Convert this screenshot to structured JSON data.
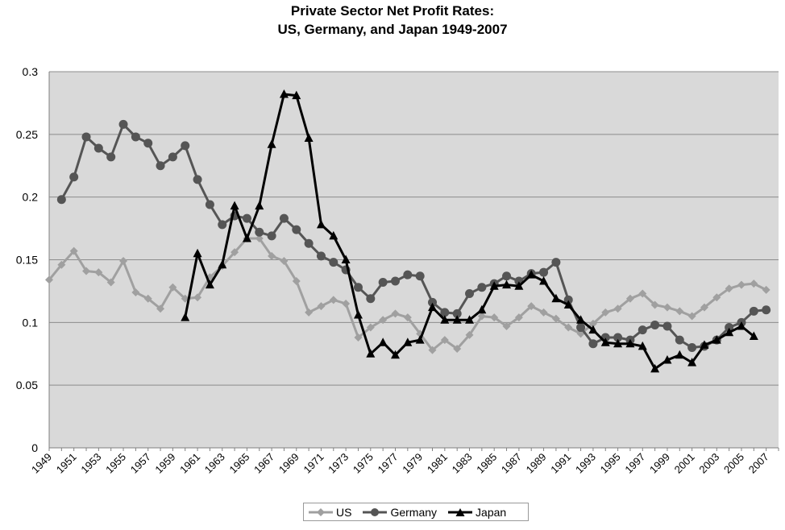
{
  "title": {
    "line1": "Private Sector Net Profit Rates:",
    "line2": "US, Germany, and Japan 1949-2007"
  },
  "colors": {
    "US": "#a0a0a0",
    "Germany": "#555555",
    "Japan": "#000000",
    "plot_bg": "#d9d9d9",
    "grid": "#8c8c8c"
  },
  "chart_data": {
    "type": "line",
    "xlabel": "",
    "ylabel": "",
    "ylim": [
      0,
      0.3
    ],
    "yticks": [
      0,
      0.05,
      0.1,
      0.15,
      0.2,
      0.25,
      0.3
    ],
    "ytick_labels": [
      "0",
      "0.05",
      "0.1",
      "0.15",
      "0.2",
      "0.25",
      "0.3"
    ],
    "x_tick_labels": [
      "1949",
      "1951",
      "1953",
      "1955",
      "1957",
      "1959",
      "1961",
      "1963",
      "1965",
      "1967",
      "1969",
      "1971",
      "1973",
      "1975",
      "1977",
      "1979",
      "1981",
      "1983",
      "1985",
      "1987",
      "1989",
      "1991",
      "1993",
      "1995",
      "1997",
      "1999",
      "2001",
      "2003",
      "2005",
      "2007"
    ],
    "grid": true,
    "legend_position": "bottom",
    "series": [
      {
        "name": "US",
        "marker": "diamond",
        "points": [
          [
            1949,
            0.134
          ],
          [
            1950,
            0.146
          ],
          [
            1951,
            0.157
          ],
          [
            1952,
            0.141
          ],
          [
            1953,
            0.14
          ],
          [
            1954,
            0.132
          ],
          [
            1955,
            0.149
          ],
          [
            1956,
            0.124
          ],
          [
            1957,
            0.119
          ],
          [
            1958,
            0.111
          ],
          [
            1959,
            0.128
          ],
          [
            1960,
            0.119
          ],
          [
            1961,
            0.12
          ],
          [
            1962,
            0.136
          ],
          [
            1963,
            0.145
          ],
          [
            1964,
            0.156
          ],
          [
            1965,
            0.167
          ],
          [
            1966,
            0.167
          ],
          [
            1967,
            0.153
          ],
          [
            1968,
            0.149
          ],
          [
            1969,
            0.133
          ],
          [
            1970,
            0.108
          ],
          [
            1971,
            0.113
          ],
          [
            1972,
            0.118
          ],
          [
            1973,
            0.115
          ],
          [
            1974,
            0.088
          ],
          [
            1975,
            0.096
          ],
          [
            1976,
            0.102
          ],
          [
            1977,
            0.107
          ],
          [
            1978,
            0.104
          ],
          [
            1979,
            0.091
          ],
          [
            1980,
            0.078
          ],
          [
            1981,
            0.086
          ],
          [
            1982,
            0.079
          ],
          [
            1983,
            0.09
          ],
          [
            1984,
            0.105
          ],
          [
            1985,
            0.104
          ],
          [
            1986,
            0.097
          ],
          [
            1987,
            0.104
          ],
          [
            1988,
            0.113
          ],
          [
            1989,
            0.108
          ],
          [
            1990,
            0.103
          ],
          [
            1991,
            0.096
          ],
          [
            1992,
            0.091
          ],
          [
            1993,
            0.099
          ],
          [
            1994,
            0.108
          ],
          [
            1995,
            0.111
          ],
          [
            1996,
            0.119
          ],
          [
            1997,
            0.123
          ],
          [
            1998,
            0.114
          ],
          [
            1999,
            0.112
          ],
          [
            2000,
            0.109
          ],
          [
            2001,
            0.105
          ],
          [
            2002,
            0.112
          ],
          [
            2003,
            0.12
          ],
          [
            2004,
            0.127
          ],
          [
            2005,
            0.13
          ],
          [
            2006,
            0.131
          ],
          [
            2007,
            0.126
          ]
        ]
      },
      {
        "name": "Germany",
        "marker": "circle",
        "points": [
          [
            1950,
            0.198
          ],
          [
            1951,
            0.216
          ],
          [
            1952,
            0.248
          ],
          [
            1953,
            0.239
          ],
          [
            1954,
            0.232
          ],
          [
            1955,
            0.258
          ],
          [
            1956,
            0.248
          ],
          [
            1957,
            0.243
          ],
          [
            1958,
            0.225
          ],
          [
            1959,
            0.232
          ],
          [
            1960,
            0.241
          ],
          [
            1961,
            0.214
          ],
          [
            1962,
            0.194
          ],
          [
            1963,
            0.178
          ],
          [
            1964,
            0.185
          ],
          [
            1965,
            0.183
          ],
          [
            1966,
            0.172
          ],
          [
            1967,
            0.169
          ],
          [
            1968,
            0.183
          ],
          [
            1969,
            0.174
          ],
          [
            1970,
            0.163
          ],
          [
            1971,
            0.153
          ],
          [
            1972,
            0.148
          ],
          [
            1973,
            0.142
          ],
          [
            1974,
            0.128
          ],
          [
            1975,
            0.119
          ],
          [
            1976,
            0.132
          ],
          [
            1977,
            0.133
          ],
          [
            1978,
            0.138
          ],
          [
            1979,
            0.137
          ],
          [
            1980,
            0.116
          ],
          [
            1981,
            0.108
          ],
          [
            1982,
            0.107
          ],
          [
            1983,
            0.123
          ],
          [
            1984,
            0.128
          ],
          [
            1985,
            0.131
          ],
          [
            1986,
            0.137
          ],
          [
            1987,
            0.133
          ],
          [
            1988,
            0.139
          ],
          [
            1989,
            0.14
          ],
          [
            1990,
            0.148
          ],
          [
            1991,
            0.118
          ],
          [
            1992,
            0.096
          ],
          [
            1993,
            0.083
          ],
          [
            1994,
            0.088
          ],
          [
            1995,
            0.088
          ],
          [
            1996,
            0.086
          ],
          [
            1997,
            0.094
          ],
          [
            1998,
            0.098
          ],
          [
            1999,
            0.097
          ],
          [
            2000,
            0.086
          ],
          [
            2001,
            0.08
          ],
          [
            2002,
            0.081
          ],
          [
            2003,
            0.086
          ],
          [
            2004,
            0.096
          ],
          [
            2005,
            0.1
          ],
          [
            2006,
            0.109
          ],
          [
            2007,
            0.11
          ]
        ]
      },
      {
        "name": "Japan",
        "marker": "triangle",
        "points": [
          [
            1960,
            0.104
          ],
          [
            1961,
            0.155
          ],
          [
            1962,
            0.13
          ],
          [
            1963,
            0.146
          ],
          [
            1964,
            0.193
          ],
          [
            1965,
            0.167
          ],
          [
            1966,
            0.193
          ],
          [
            1967,
            0.242
          ],
          [
            1968,
            0.282
          ],
          [
            1969,
            0.281
          ],
          [
            1970,
            0.247
          ],
          [
            1971,
            0.178
          ],
          [
            1972,
            0.169
          ],
          [
            1973,
            0.15
          ],
          [
            1974,
            0.106
          ],
          [
            1975,
            0.075
          ],
          [
            1976,
            0.084
          ],
          [
            1977,
            0.074
          ],
          [
            1978,
            0.084
          ],
          [
            1979,
            0.086
          ],
          [
            1980,
            0.112
          ],
          [
            1981,
            0.102
          ],
          [
            1982,
            0.102
          ],
          [
            1983,
            0.102
          ],
          [
            1984,
            0.11
          ],
          [
            1985,
            0.129
          ],
          [
            1986,
            0.13
          ],
          [
            1987,
            0.129
          ],
          [
            1988,
            0.138
          ],
          [
            1989,
            0.133
          ],
          [
            1990,
            0.119
          ],
          [
            1991,
            0.114
          ],
          [
            1992,
            0.102
          ],
          [
            1993,
            0.094
          ],
          [
            1994,
            0.084
          ],
          [
            1995,
            0.083
          ],
          [
            1996,
            0.083
          ],
          [
            1997,
            0.081
          ],
          [
            1998,
            0.063
          ],
          [
            1999,
            0.07
          ],
          [
            2000,
            0.074
          ],
          [
            2001,
            0.068
          ],
          [
            2002,
            0.082
          ],
          [
            2003,
            0.086
          ],
          [
            2004,
            0.092
          ],
          [
            2005,
            0.097
          ],
          [
            2006,
            0.089
          ]
        ]
      }
    ]
  }
}
